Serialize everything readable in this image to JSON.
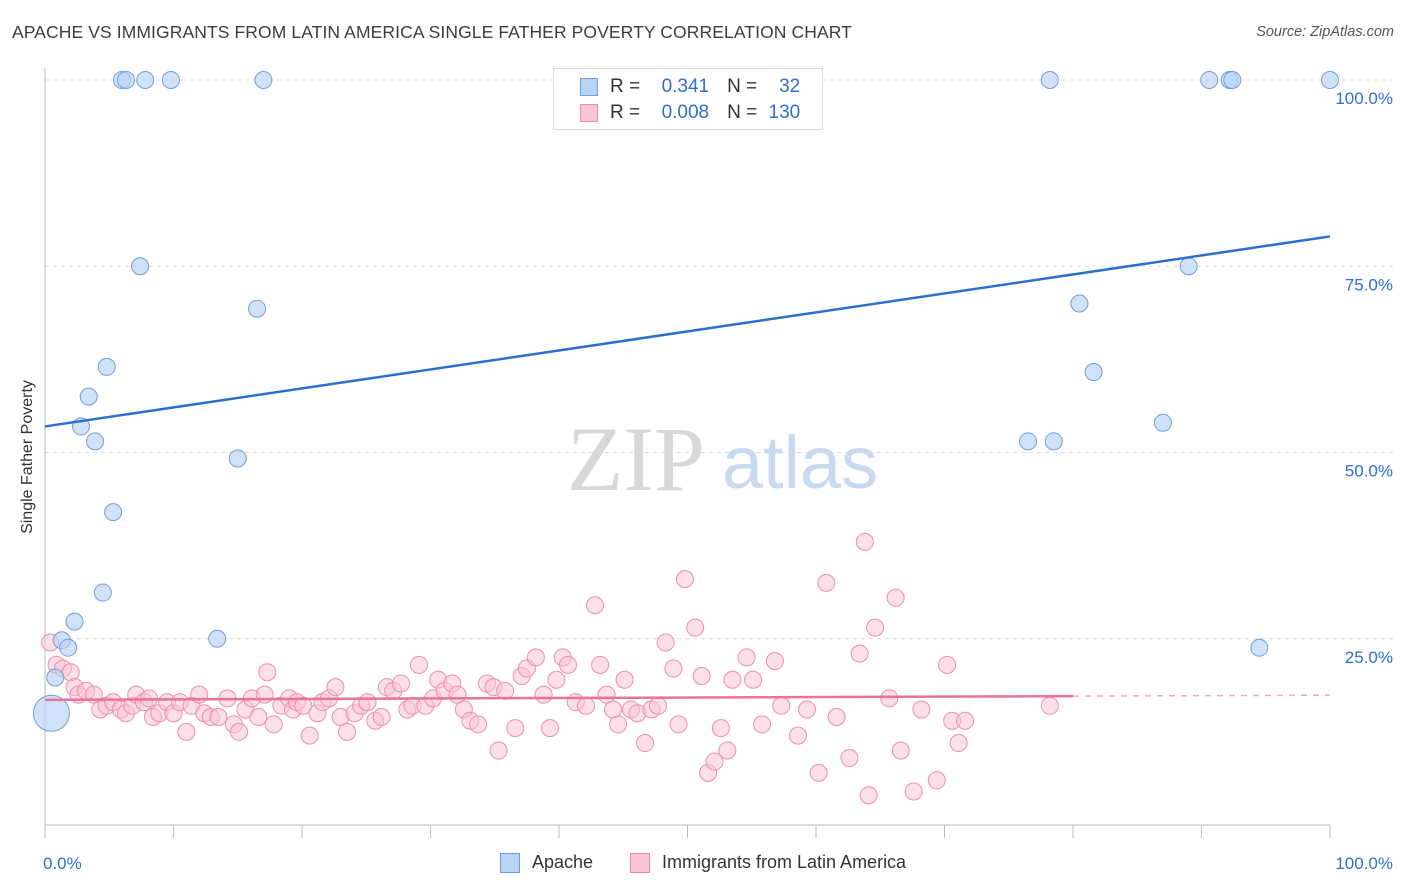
{
  "title": "APACHE VS IMMIGRANTS FROM LATIN AMERICA SINGLE FATHER POVERTY CORRELATION CHART",
  "source": "Source: ZipAtlas.com",
  "watermark": {
    "zip": "ZIP",
    "atlas": "atlas"
  },
  "colors": {
    "apache_fill": "#b9d3f5",
    "apache_stroke": "#6d9fdc",
    "apache_line": "#2c6fd1",
    "latin_fill": "#f9c5d5",
    "latin_stroke": "#ec8fab",
    "latin_line": "#e8729a",
    "value_text": "#2f6fd0",
    "grid": "#dcdcdc"
  },
  "legend": {
    "rows": [
      {
        "r_label": "R =",
        "r_value": "0.341",
        "n_label": "N =",
        "n_value": "32"
      },
      {
        "r_label": "R =",
        "r_value": "0.008",
        "n_label": "N =",
        "n_value": "130"
      }
    ]
  },
  "bottom_legend": [
    "Apache",
    "Immigrants from Latin America"
  ],
  "chart_data": {
    "type": "scatter",
    "title": "APACHE VS IMMIGRANTS FROM LATIN AMERICA SINGLE FATHER POVERTY CORRELATION CHART",
    "xlabel": "",
    "ylabel": "Single Father Poverty",
    "xlim": [
      0,
      100
    ],
    "ylim": [
      0,
      100
    ],
    "x_tick_labels": [
      "0.0%",
      "100.0%"
    ],
    "y_tick_labels": [
      "25.0%",
      "50.0%",
      "75.0%",
      "100.0%"
    ],
    "y_ticks": [
      25,
      50,
      75,
      100
    ],
    "grid": true,
    "series": [
      {
        "name": "Apache",
        "trend": {
          "x": [
            0,
            100
          ],
          "y": [
            53.5,
            79
          ]
        },
        "points": [
          [
            6,
            100
          ],
          [
            6.3,
            100
          ],
          [
            7.8,
            100
          ],
          [
            9.8,
            100
          ],
          [
            17,
            100
          ],
          [
            78.2,
            100
          ],
          [
            90.6,
            100
          ],
          [
            92.2,
            100
          ],
          [
            92.4,
            100
          ],
          [
            100,
            100
          ],
          [
            7.4,
            75
          ],
          [
            16.5,
            69.3
          ],
          [
            4.8,
            61.5
          ],
          [
            3.4,
            57.5
          ],
          [
            2.8,
            53.5
          ],
          [
            3.9,
            51.5
          ],
          [
            15,
            49.2
          ],
          [
            5.3,
            42
          ],
          [
            4.5,
            31.2
          ],
          [
            2.3,
            27.3
          ],
          [
            13.4,
            25
          ],
          [
            1.3,
            24.8
          ],
          [
            1.8,
            23.8
          ],
          [
            0.8,
            19.8
          ],
          [
            0.5,
            15
          ],
          [
            80.5,
            70
          ],
          [
            89,
            75
          ],
          [
            81.6,
            60.8
          ],
          [
            76.5,
            51.5
          ],
          [
            78.5,
            51.5
          ],
          [
            87,
            54
          ],
          [
            94.5,
            23.8
          ]
        ]
      },
      {
        "name": "Immigrants from Latin America",
        "trend": {
          "x": [
            0,
            80
          ],
          "y": [
            16.8,
            17.3
          ],
          "dashed_to": 100
        },
        "points": [
          [
            0.4,
            24.5
          ],
          [
            0.9,
            21.5
          ],
          [
            1.4,
            21
          ],
          [
            2,
            20.5
          ],
          [
            2.3,
            18.5
          ],
          [
            2.6,
            17.5
          ],
          [
            3.2,
            18
          ],
          [
            3.8,
            17.5
          ],
          [
            4.3,
            15.5
          ],
          [
            4.8,
            16
          ],
          [
            5.3,
            16.5
          ],
          [
            5.9,
            15.5
          ],
          [
            6.3,
            15
          ],
          [
            6.8,
            16
          ],
          [
            7.1,
            17.5
          ],
          [
            7.7,
            16.5
          ],
          [
            8.1,
            17
          ],
          [
            8.4,
            14.5
          ],
          [
            8.9,
            15
          ],
          [
            9.5,
            16.5
          ],
          [
            10,
            15
          ],
          [
            10.5,
            16.5
          ],
          [
            11,
            12.5
          ],
          [
            11.4,
            16
          ],
          [
            12,
            17.5
          ],
          [
            12.4,
            15
          ],
          [
            12.9,
            14.5
          ],
          [
            13.5,
            14.5
          ],
          [
            14.2,
            17
          ],
          [
            14.7,
            13.5
          ],
          [
            15.1,
            12.5
          ],
          [
            15.6,
            15.5
          ],
          [
            16.1,
            17
          ],
          [
            16.6,
            14.5
          ],
          [
            17.1,
            17.5
          ],
          [
            17.3,
            20.5
          ],
          [
            17.8,
            13.5
          ],
          [
            18.4,
            16
          ],
          [
            19,
            17
          ],
          [
            19.3,
            15.5
          ],
          [
            19.6,
            16.5
          ],
          [
            20.1,
            16
          ],
          [
            20.6,
            12
          ],
          [
            21.2,
            15
          ],
          [
            21.6,
            16.5
          ],
          [
            22.1,
            17
          ],
          [
            22.6,
            18.5
          ],
          [
            23,
            14.5
          ],
          [
            23.5,
            12.5
          ],
          [
            24.1,
            15
          ],
          [
            24.6,
            16
          ],
          [
            25.1,
            16.5
          ],
          [
            25.7,
            14
          ],
          [
            26.2,
            14.5
          ],
          [
            26.6,
            18.5
          ],
          [
            27.1,
            18
          ],
          [
            27.7,
            19
          ],
          [
            28.2,
            15.5
          ],
          [
            28.6,
            16
          ],
          [
            29.1,
            21.5
          ],
          [
            29.6,
            16
          ],
          [
            30.2,
            17
          ],
          [
            30.6,
            19.5
          ],
          [
            31.1,
            18
          ],
          [
            31.7,
            19
          ],
          [
            32.1,
            17.5
          ],
          [
            32.6,
            15.5
          ],
          [
            33.1,
            14
          ],
          [
            33.7,
            13.5
          ],
          [
            34.4,
            19
          ],
          [
            34.9,
            18.5
          ],
          [
            35.3,
            10
          ],
          [
            35.8,
            18
          ],
          [
            36.6,
            13
          ],
          [
            37.1,
            20
          ],
          [
            37.5,
            21
          ],
          [
            38.2,
            22.5
          ],
          [
            38.8,
            17.5
          ],
          [
            39.3,
            13
          ],
          [
            39.8,
            19.5
          ],
          [
            40.3,
            22.5
          ],
          [
            40.7,
            21.5
          ],
          [
            41.3,
            16.5
          ],
          [
            42.1,
            16
          ],
          [
            42.8,
            29.5
          ],
          [
            43.2,
            21.5
          ],
          [
            43.7,
            17.5
          ],
          [
            44.2,
            15.5
          ],
          [
            44.6,
            13.5
          ],
          [
            45.1,
            19.5
          ],
          [
            45.6,
            15.5
          ],
          [
            46.1,
            15
          ],
          [
            46.7,
            11
          ],
          [
            47.2,
            15.5
          ],
          [
            47.7,
            16
          ],
          [
            48.3,
            24.5
          ],
          [
            48.9,
            21
          ],
          [
            49.3,
            13.5
          ],
          [
            49.8,
            33
          ],
          [
            50.6,
            26.5
          ],
          [
            51.1,
            20
          ],
          [
            51.6,
            7
          ],
          [
            52.1,
            8.5
          ],
          [
            52.6,
            13
          ],
          [
            53.1,
            10
          ],
          [
            53.5,
            19.5
          ],
          [
            54.6,
            22.5
          ],
          [
            55.1,
            19.5
          ],
          [
            55.8,
            13.5
          ],
          [
            56.8,
            22
          ],
          [
            57.3,
            16
          ],
          [
            58.6,
            12
          ],
          [
            59.3,
            15.5
          ],
          [
            60.2,
            7
          ],
          [
            60.8,
            32.5
          ],
          [
            61.6,
            14.5
          ],
          [
            62.6,
            9
          ],
          [
            63.4,
            23
          ],
          [
            63.8,
            38
          ],
          [
            64.1,
            4
          ],
          [
            64.6,
            26.5
          ],
          [
            65.7,
            17
          ],
          [
            66.2,
            30.5
          ],
          [
            66.6,
            10
          ],
          [
            67.6,
            4.5
          ],
          [
            68.2,
            15.5
          ],
          [
            69.4,
            6
          ],
          [
            70.2,
            21.5
          ],
          [
            70.6,
            14
          ],
          [
            71.1,
            11
          ],
          [
            71.6,
            14
          ],
          [
            78.2,
            16
          ]
        ]
      }
    ]
  }
}
